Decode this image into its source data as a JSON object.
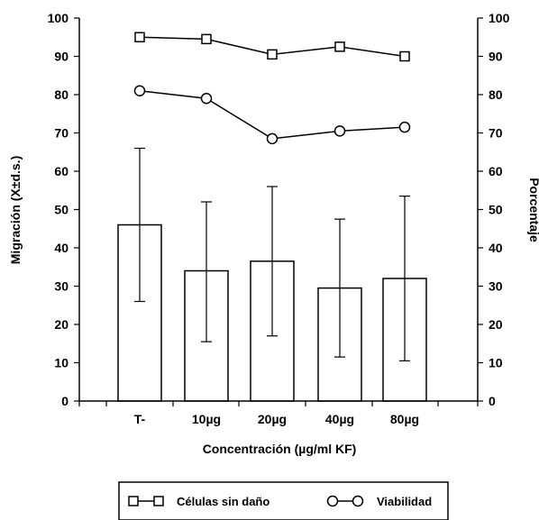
{
  "chart_data": {
    "type": "bar",
    "categories": [
      "T-",
      "10µg",
      "20µg",
      "40µg",
      "80µg"
    ],
    "xlabel": "Concentración (µg/ml KF)",
    "ylabel": "Migración (X±d.s.)",
    "y2label": "Porcentaje",
    "ylim": [
      0,
      100
    ],
    "y2lim": [
      0,
      100
    ],
    "yticks": [
      0,
      10,
      20,
      30,
      40,
      50,
      60,
      70,
      80,
      90,
      100
    ],
    "y2ticks": [
      0,
      10,
      20,
      30,
      40,
      50,
      60,
      70,
      80,
      90,
      100
    ],
    "bars": {
      "values": [
        46,
        34,
        36.5,
        29.5,
        32
      ],
      "error_low": [
        26,
        15.5,
        17,
        11.5,
        10.5
      ],
      "error_high": [
        66,
        52,
        56,
        47.5,
        53.5
      ]
    },
    "lines": [
      {
        "name": "Células sin daño",
        "marker": "square",
        "axis": "right",
        "values": [
          95,
          94.5,
          90.5,
          92.5,
          90
        ]
      },
      {
        "name": "Viabilidad",
        "marker": "circle",
        "axis": "right",
        "values": [
          81,
          79,
          68.5,
          70.5,
          71.5
        ]
      }
    ],
    "grid": false,
    "legend_position": "bottom"
  }
}
